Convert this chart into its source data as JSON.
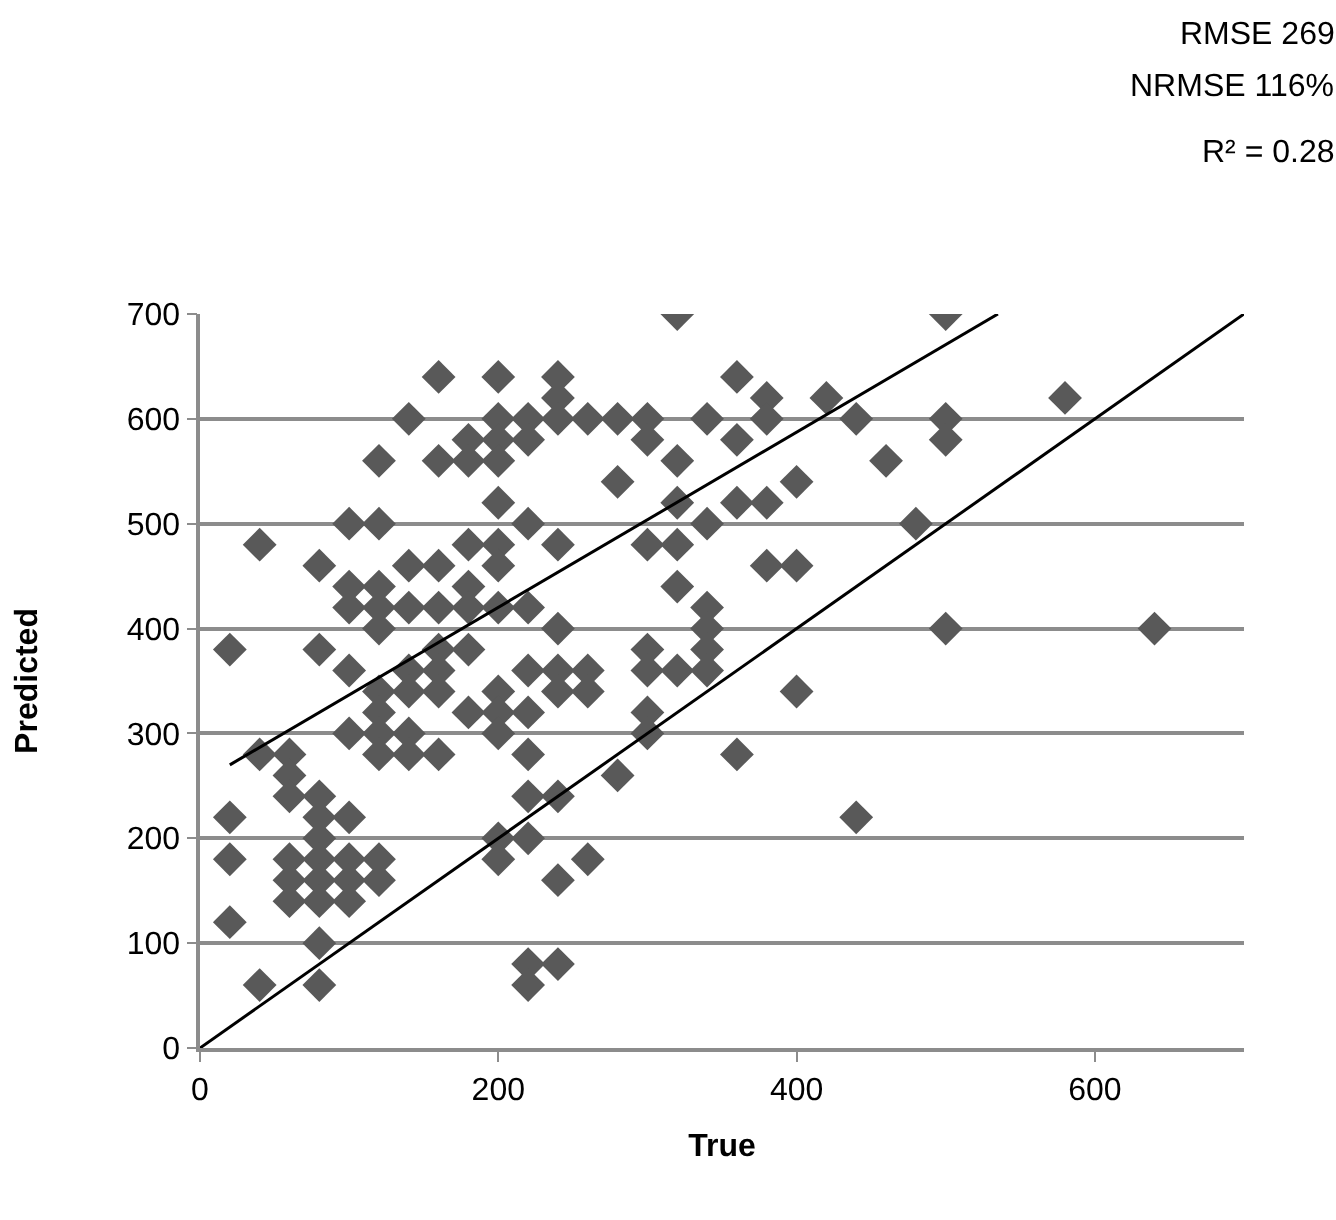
{
  "chart_data": {
    "type": "scatter",
    "xlabel": "True",
    "ylabel": "Predicted",
    "annotations": [
      "RMSE 269",
      "NRMSE 116%",
      "R² = 0.28"
    ],
    "xlim": [
      0,
      700
    ],
    "xticks": [
      0,
      200,
      400,
      600
    ],
    "ylim": [
      0,
      700
    ],
    "yticks": [
      0,
      100,
      200,
      300,
      400,
      500,
      600,
      700
    ],
    "grid": "y",
    "series": [
      {
        "marker": "diamond",
        "color": "#595959",
        "x": [
          20,
          20,
          20,
          20,
          40,
          40,
          40,
          60,
          60,
          60,
          60,
          60,
          60,
          80,
          80,
          80,
          80,
          80,
          80,
          80,
          80,
          80,
          80,
          100,
          100,
          100,
          100,
          100,
          100,
          100,
          100,
          100,
          120,
          120,
          120,
          120,
          120,
          120,
          120,
          120,
          120,
          120,
          120,
          140,
          140,
          140,
          140,
          140,
          140,
          140,
          160,
          160,
          160,
          160,
          160,
          160,
          160,
          160,
          180,
          180,
          180,
          180,
          180,
          180,
          180,
          200,
          200,
          200,
          200,
          200,
          200,
          200,
          200,
          200,
          200,
          200,
          200,
          200,
          220,
          220,
          220,
          220,
          220,
          220,
          220,
          220,
          220,
          220,
          220,
          240,
          240,
          240,
          240,
          240,
          240,
          240,
          240,
          240,
          240,
          260,
          260,
          260,
          260,
          280,
          280,
          280,
          300,
          300,
          300,
          300,
          300,
          300,
          300,
          320,
          320,
          320,
          320,
          320,
          320,
          340,
          340,
          340,
          340,
          340,
          340,
          360,
          360,
          360,
          360,
          380,
          380,
          380,
          380,
          400,
          400,
          400,
          420,
          440,
          440,
          460,
          480,
          500,
          500,
          500,
          500,
          580,
          640
        ],
        "values": [
          380,
          220,
          180,
          120,
          480,
          280,
          60,
          280,
          260,
          240,
          180,
          160,
          140,
          460,
          380,
          240,
          220,
          200,
          180,
          160,
          140,
          100,
          60,
          500,
          440,
          420,
          360,
          300,
          220,
          180,
          160,
          140,
          560,
          500,
          440,
          420,
          400,
          340,
          320,
          300,
          280,
          180,
          160,
          600,
          460,
          420,
          360,
          340,
          300,
          280,
          640,
          560,
          460,
          420,
          380,
          360,
          340,
          280,
          580,
          560,
          480,
          440,
          420,
          380,
          320,
          640,
          600,
          580,
          560,
          520,
          480,
          460,
          420,
          340,
          320,
          300,
          200,
          180,
          600,
          580,
          500,
          420,
          360,
          320,
          280,
          240,
          200,
          80,
          60,
          640,
          620,
          600,
          480,
          400,
          360,
          340,
          240,
          160,
          80,
          600,
          360,
          340,
          180,
          600,
          540,
          260,
          600,
          580,
          480,
          380,
          360,
          320,
          300,
          700,
          560,
          520,
          480,
          440,
          360,
          600,
          500,
          420,
          400,
          380,
          360,
          640,
          580,
          520,
          280,
          620,
          600,
          520,
          460,
          540,
          460,
          340,
          620,
          600,
          220,
          560,
          500,
          700,
          600,
          580,
          400,
          620,
          400
        ]
      },
      {
        "type": "line",
        "color": "#000000",
        "line_style": "solid",
        "x": [
          0,
          700
        ],
        "values": [
          0,
          700
        ]
      },
      {
        "type": "line",
        "color": "#000000",
        "line_style": "solid",
        "x": [
          20,
          535
        ],
        "values": [
          270,
          700
        ]
      }
    ]
  }
}
